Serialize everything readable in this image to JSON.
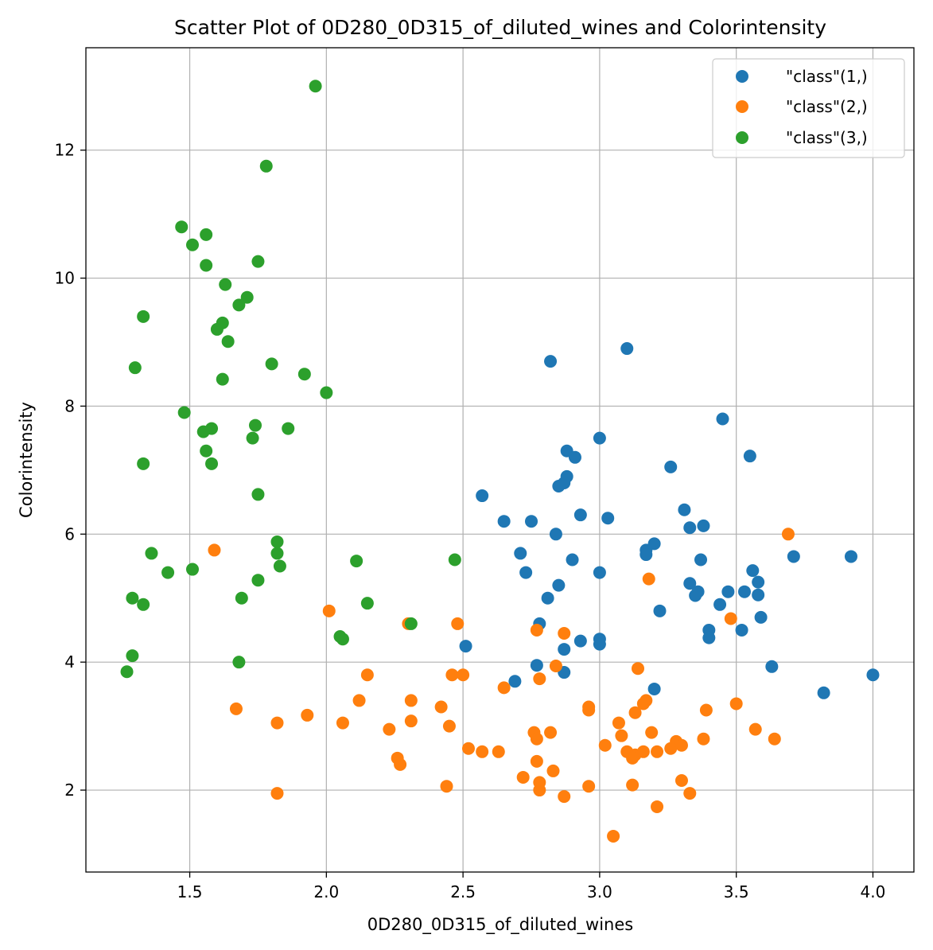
{
  "chart_data": {
    "type": "scatter",
    "title": "Scatter Plot of 0D280_0D315_of_diluted_wines and Colorintensity",
    "xlabel": "0D280_0D315_of_diluted_wines",
    "ylabel": "Colorintensity",
    "xlim": [
      1.12,
      4.15
    ],
    "ylim": [
      0.72,
      13.6
    ],
    "xticks": [
      1.5,
      2.0,
      2.5,
      3.0,
      3.5,
      4.0
    ],
    "xtick_labels": [
      "1.5",
      "2.0",
      "2.5",
      "3.0",
      "3.5",
      "4.0"
    ],
    "yticks": [
      2,
      4,
      6,
      8,
      10,
      12
    ],
    "ytick_labels": [
      "2",
      "4",
      "6",
      "8",
      "10",
      "12"
    ],
    "grid": true,
    "legend_position": "top-right",
    "series": [
      {
        "name": "\"class\"(1,)",
        "color": "#1f77b4",
        "points": [
          [
            2.82,
            8.7
          ],
          [
            3.1,
            8.9
          ],
          [
            3.45,
            7.8
          ],
          [
            3.0,
            7.5
          ],
          [
            2.88,
            7.3
          ],
          [
            2.91,
            7.2
          ],
          [
            3.55,
            7.22
          ],
          [
            3.26,
            7.05
          ],
          [
            2.88,
            6.9
          ],
          [
            2.87,
            6.8
          ],
          [
            2.85,
            6.75
          ],
          [
            2.57,
            6.6
          ],
          [
            3.31,
            6.38
          ],
          [
            2.93,
            6.3
          ],
          [
            3.03,
            6.25
          ],
          [
            2.65,
            6.2
          ],
          [
            2.75,
            6.2
          ],
          [
            3.33,
            6.1
          ],
          [
            3.38,
            6.13
          ],
          [
            2.84,
            6.0
          ],
          [
            3.2,
            5.85
          ],
          [
            3.17,
            5.75
          ],
          [
            3.17,
            5.68
          ],
          [
            2.71,
            5.7
          ],
          [
            3.37,
            5.6
          ],
          [
            2.9,
            5.6
          ],
          [
            3.71,
            5.65
          ],
          [
            3.92,
            5.65
          ],
          [
            3.56,
            5.43
          ],
          [
            2.73,
            5.4
          ],
          [
            3.0,
            5.4
          ],
          [
            3.58,
            5.25
          ],
          [
            3.33,
            5.23
          ],
          [
            2.85,
            5.2
          ],
          [
            3.47,
            5.1
          ],
          [
            3.53,
            5.1
          ],
          [
            3.36,
            5.1
          ],
          [
            3.35,
            5.04
          ],
          [
            3.58,
            5.05
          ],
          [
            2.81,
            5.0
          ],
          [
            3.44,
            4.9
          ],
          [
            3.22,
            4.8
          ],
          [
            3.59,
            4.7
          ],
          [
            2.78,
            4.6
          ],
          [
            3.4,
            4.5
          ],
          [
            3.52,
            4.5
          ],
          [
            3.4,
            4.38
          ],
          [
            3.0,
            4.36
          ],
          [
            2.93,
            4.33
          ],
          [
            3.0,
            4.28
          ],
          [
            2.51,
            4.25
          ],
          [
            2.87,
            4.2
          ],
          [
            2.77,
            3.95
          ],
          [
            3.63,
            3.93
          ],
          [
            2.87,
            3.84
          ],
          [
            4.0,
            3.8
          ],
          [
            2.69,
            3.7
          ],
          [
            3.2,
            3.58
          ],
          [
            3.82,
            3.52
          ]
        ]
      },
      {
        "name": "\"class\"(2,)",
        "color": "#ff7f0e",
        "points": [
          [
            3.69,
            6.0
          ],
          [
            1.59,
            5.75
          ],
          [
            3.18,
            5.3
          ],
          [
            2.01,
            4.8
          ],
          [
            3.48,
            4.68
          ],
          [
            2.48,
            4.6
          ],
          [
            2.3,
            4.6
          ],
          [
            2.77,
            4.5
          ],
          [
            2.87,
            4.45
          ],
          [
            2.84,
            3.94
          ],
          [
            3.14,
            3.9
          ],
          [
            2.15,
            3.8
          ],
          [
            2.46,
            3.8
          ],
          [
            2.5,
            3.8
          ],
          [
            2.78,
            3.74
          ],
          [
            2.65,
            3.6
          ],
          [
            2.31,
            3.4
          ],
          [
            2.12,
            3.4
          ],
          [
            3.17,
            3.4
          ],
          [
            3.16,
            3.35
          ],
          [
            3.5,
            3.35
          ],
          [
            2.42,
            3.3
          ],
          [
            2.96,
            3.3
          ],
          [
            1.67,
            3.27
          ],
          [
            2.96,
            3.25
          ],
          [
            3.39,
            3.25
          ],
          [
            3.13,
            3.21
          ],
          [
            1.93,
            3.17
          ],
          [
            1.82,
            3.05
          ],
          [
            2.06,
            3.05
          ],
          [
            2.31,
            3.08
          ],
          [
            3.07,
            3.05
          ],
          [
            2.45,
            3.0
          ],
          [
            2.23,
            2.95
          ],
          [
            3.57,
            2.95
          ],
          [
            2.76,
            2.9
          ],
          [
            2.82,
            2.9
          ],
          [
            3.19,
            2.9
          ],
          [
            3.08,
            2.85
          ],
          [
            2.77,
            2.8
          ],
          [
            3.38,
            2.8
          ],
          [
            3.64,
            2.8
          ],
          [
            3.28,
            2.76
          ],
          [
            3.26,
            2.65
          ],
          [
            3.3,
            2.7
          ],
          [
            3.02,
            2.7
          ],
          [
            2.52,
            2.65
          ],
          [
            3.1,
            2.6
          ],
          [
            2.57,
            2.6
          ],
          [
            2.63,
            2.6
          ],
          [
            3.16,
            2.6
          ],
          [
            3.21,
            2.6
          ],
          [
            3.13,
            2.55
          ],
          [
            3.12,
            2.5
          ],
          [
            2.26,
            2.5
          ],
          [
            2.27,
            2.4
          ],
          [
            2.77,
            2.45
          ],
          [
            2.83,
            2.3
          ],
          [
            2.72,
            2.2
          ],
          [
            3.3,
            2.15
          ],
          [
            2.78,
            2.12
          ],
          [
            3.12,
            2.08
          ],
          [
            2.44,
            2.06
          ],
          [
            2.96,
            2.06
          ],
          [
            2.78,
            2.0
          ],
          [
            1.82,
            1.95
          ],
          [
            3.33,
            1.95
          ],
          [
            2.87,
            1.9
          ],
          [
            3.21,
            1.74
          ],
          [
            3.05,
            1.28
          ]
        ]
      },
      {
        "name": "\"class\"(3,)",
        "color": "#2ca02c",
        "points": [
          [
            1.96,
            13.0
          ],
          [
            1.78,
            11.75
          ],
          [
            1.47,
            10.8
          ],
          [
            1.56,
            10.68
          ],
          [
            1.51,
            10.52
          ],
          [
            1.75,
            10.26
          ],
          [
            1.56,
            10.2
          ],
          [
            1.63,
            9.9
          ],
          [
            1.71,
            9.7
          ],
          [
            1.68,
            9.58
          ],
          [
            1.33,
            9.4
          ],
          [
            1.62,
            9.3
          ],
          [
            1.6,
            9.2
          ],
          [
            1.64,
            9.01
          ],
          [
            1.8,
            8.66
          ],
          [
            1.3,
            8.6
          ],
          [
            1.92,
            8.5
          ],
          [
            1.62,
            8.42
          ],
          [
            2.0,
            8.21
          ],
          [
            1.48,
            7.9
          ],
          [
            1.74,
            7.7
          ],
          [
            1.58,
            7.65
          ],
          [
            1.86,
            7.65
          ],
          [
            1.55,
            7.6
          ],
          [
            1.73,
            7.5
          ],
          [
            1.56,
            7.3
          ],
          [
            1.33,
            7.1
          ],
          [
            1.58,
            7.1
          ],
          [
            1.75,
            6.62
          ],
          [
            1.82,
            5.88
          ],
          [
            1.36,
            5.7
          ],
          [
            1.82,
            5.7
          ],
          [
            2.47,
            5.6
          ],
          [
            2.11,
            5.58
          ],
          [
            1.83,
            5.5
          ],
          [
            1.51,
            5.45
          ],
          [
            1.42,
            5.4
          ],
          [
            1.75,
            5.28
          ],
          [
            1.69,
            5.0
          ],
          [
            1.29,
            5.0
          ],
          [
            2.15,
            4.92
          ],
          [
            1.33,
            4.9
          ],
          [
            2.31,
            4.6
          ],
          [
            2.05,
            4.4
          ],
          [
            2.06,
            4.36
          ],
          [
            1.29,
            4.1
          ],
          [
            1.68,
            4.0
          ],
          [
            1.27,
            3.85
          ]
        ]
      }
    ]
  }
}
